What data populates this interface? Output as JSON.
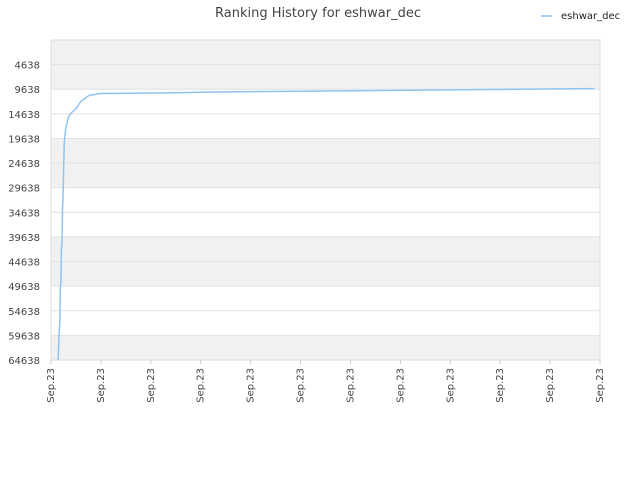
{
  "chart_data": {
    "type": "line",
    "title": "Ranking History for eshwar_dec",
    "xlabel": "",
    "ylabel": "",
    "y_inverted": true,
    "ylim": [
      -362,
      64638
    ],
    "y_ticks": [
      4638,
      9638,
      14638,
      19638,
      24638,
      29638,
      34638,
      39638,
      44638,
      49638,
      54638,
      59638,
      64638
    ],
    "x_ticks": [
      "Sep.23",
      "Sep.23",
      "Sep.23",
      "Sep.23",
      "Sep.23",
      "Sep.23",
      "Sep.23",
      "Sep.23",
      "Sep.23",
      "Sep.23",
      "Sep.23",
      "Sep.23"
    ],
    "grid": true,
    "legend_position": "top-right",
    "series": [
      {
        "name": "eshwar_dec",
        "color": "#90c4f0",
        "points": [
          [
            0.013,
            64638
          ],
          [
            0.015,
            59000
          ],
          [
            0.016,
            57000
          ],
          [
            0.017,
            50000
          ],
          [
            0.018,
            49000
          ],
          [
            0.019,
            42000
          ],
          [
            0.02,
            41000
          ],
          [
            0.021,
            34000
          ],
          [
            0.022,
            31000
          ],
          [
            0.023,
            26000
          ],
          [
            0.024,
            21000
          ],
          [
            0.025,
            19500
          ],
          [
            0.027,
            17500
          ],
          [
            0.03,
            16000
          ],
          [
            0.033,
            15000
          ],
          [
            0.038,
            14300
          ],
          [
            0.045,
            13700
          ],
          [
            0.05,
            12800
          ],
          [
            0.055,
            12000
          ],
          [
            0.06,
            11700
          ],
          [
            0.065,
            11200
          ],
          [
            0.07,
            10900
          ],
          [
            0.08,
            10700
          ],
          [
            0.09,
            10500
          ],
          [
            0.2,
            10400
          ],
          [
            0.3,
            10200
          ],
          [
            0.4,
            10100
          ],
          [
            0.5,
            10000
          ],
          [
            0.6,
            9900
          ],
          [
            0.7,
            9800
          ],
          [
            0.8,
            9700
          ],
          [
            0.9,
            9600
          ],
          [
            0.99,
            9500
          ]
        ]
      }
    ]
  }
}
